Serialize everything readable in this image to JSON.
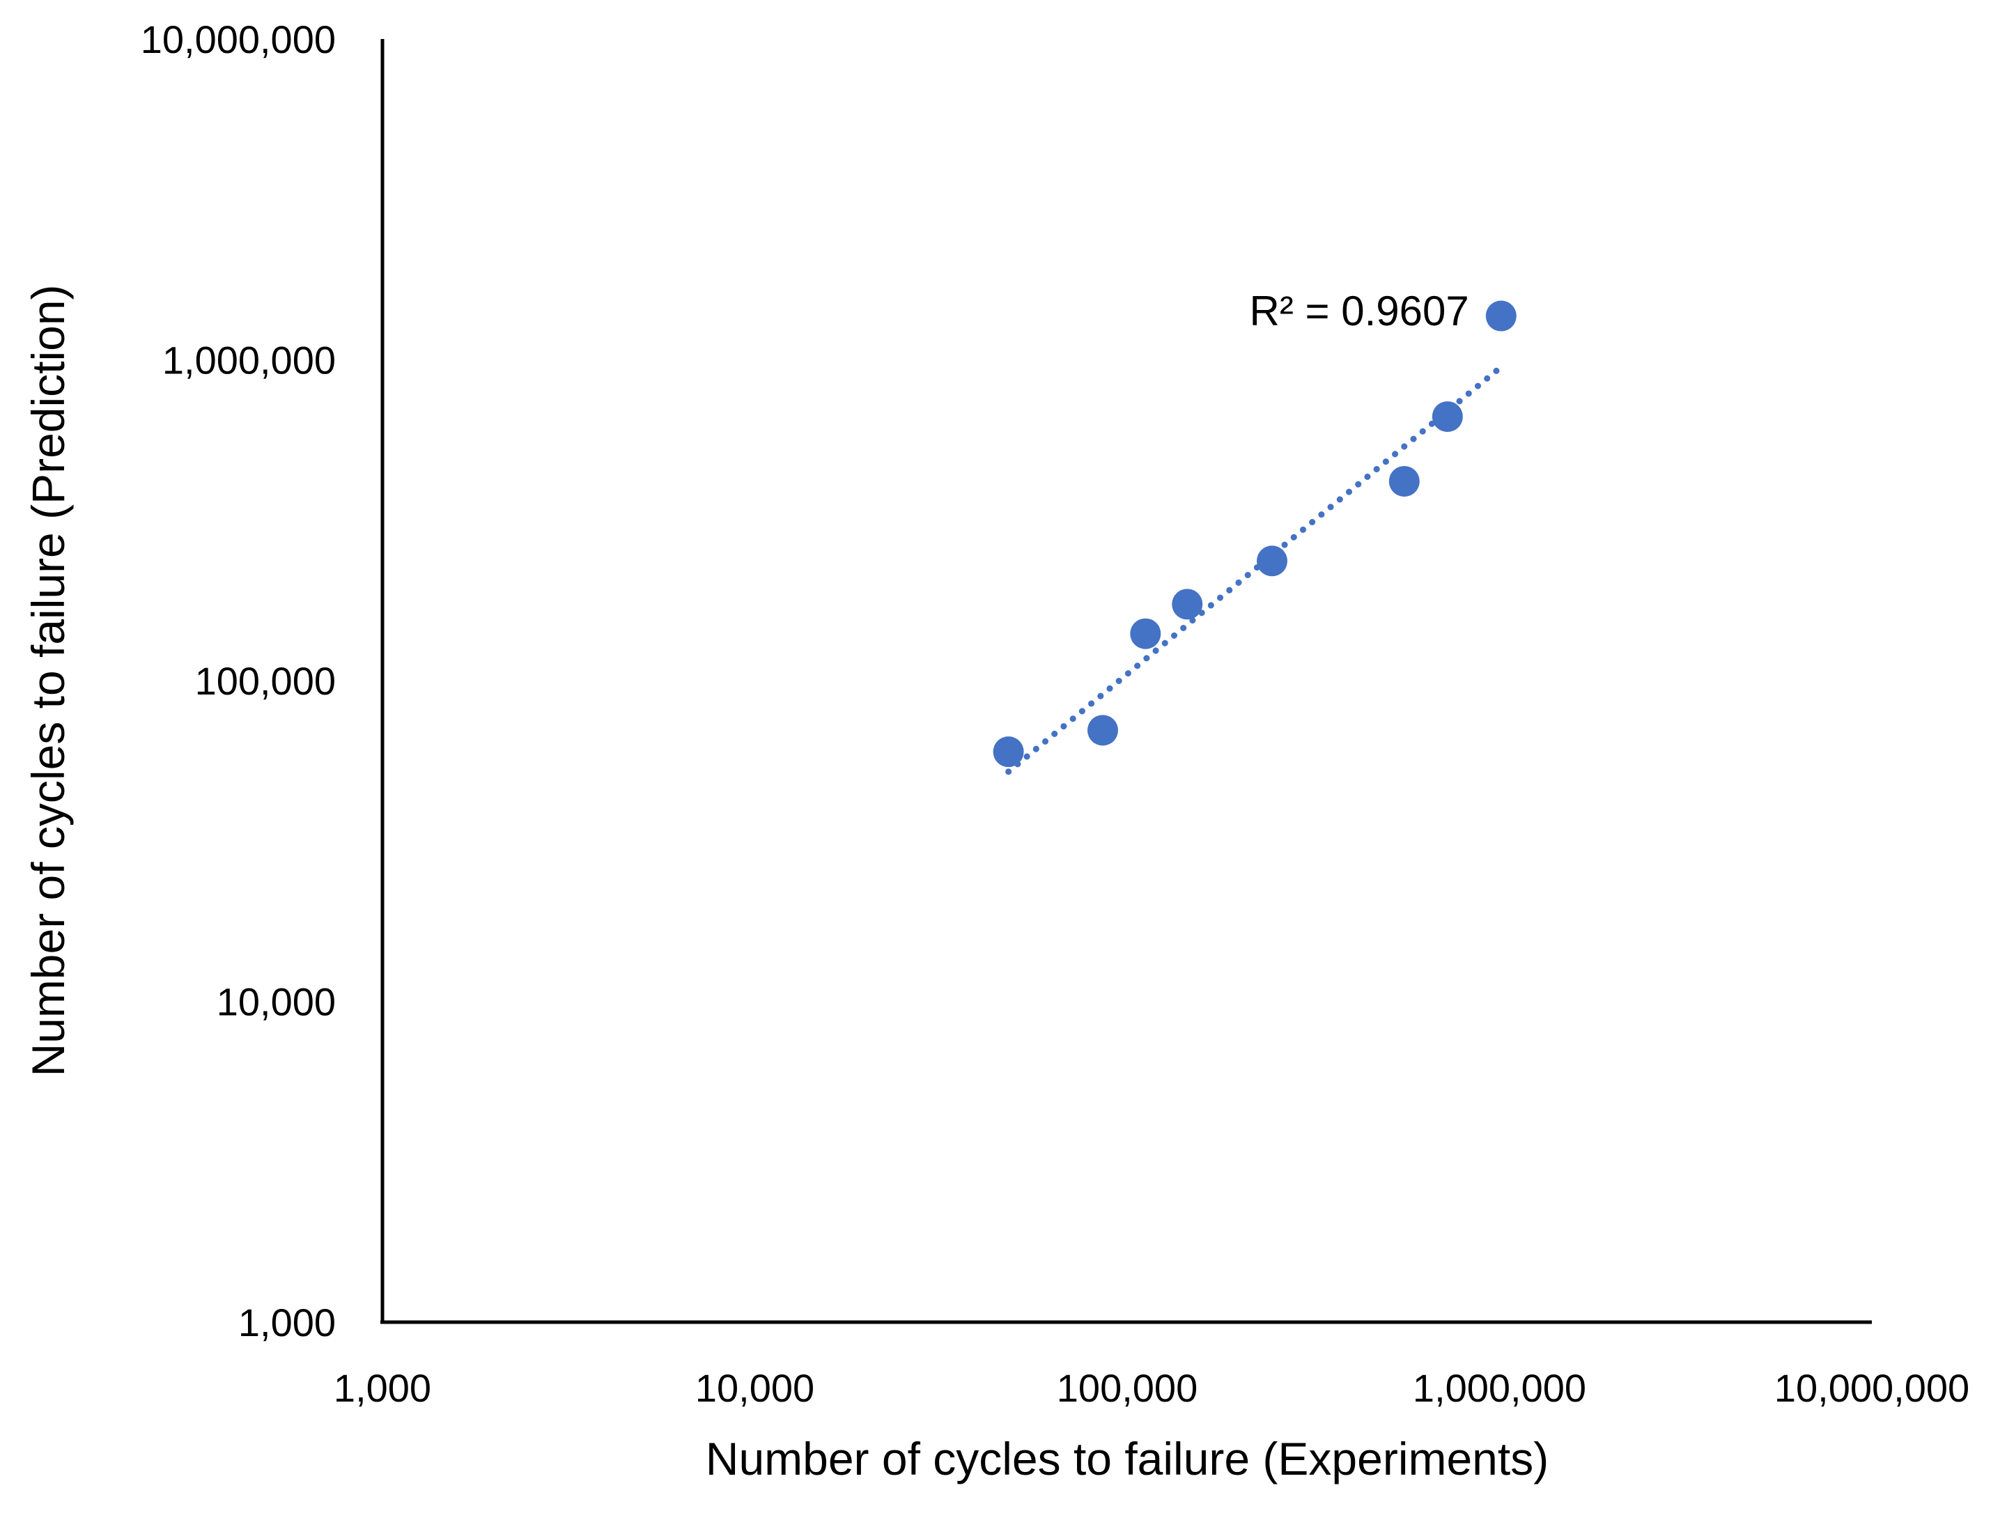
{
  "chart_data": {
    "type": "scatter",
    "title": "",
    "xlabel": "Number of cycles to failure (Experiments)",
    "ylabel": "Number of cycles to failure (Prediction)",
    "x_scale": "log",
    "y_scale": "log",
    "xlim": [
      1000,
      10000000
    ],
    "ylim": [
      1000,
      10000000
    ],
    "x_ticks": [
      {
        "value": 1000,
        "label": "1,000"
      },
      {
        "value": 10000,
        "label": "10,000"
      },
      {
        "value": 100000,
        "label": "100,000"
      },
      {
        "value": 1000000,
        "label": "1,000,000"
      },
      {
        "value": 10000000,
        "label": "10,000,000"
      }
    ],
    "y_ticks": [
      {
        "value": 1000,
        "label": "1,000"
      },
      {
        "value": 10000,
        "label": "10,000"
      },
      {
        "value": 100000,
        "label": "100,000"
      },
      {
        "value": 1000000,
        "label": "1,000,000"
      },
      {
        "value": 10000000,
        "label": "10,000,000"
      }
    ],
    "grid": false,
    "legend": "none",
    "marker_color": "#4472C4",
    "trendline_color": "#4472C4",
    "series": [
      {
        "points": [
          {
            "x": 48000,
            "y": 60000
          },
          {
            "x": 86000,
            "y": 70000
          },
          {
            "x": 112000,
            "y": 140000
          },
          {
            "x": 145000,
            "y": 173000
          },
          {
            "x": 245000,
            "y": 236000
          },
          {
            "x": 555000,
            "y": 418000
          },
          {
            "x": 725000,
            "y": 665000
          },
          {
            "x": 1010000,
            "y": 1370000
          }
        ]
      }
    ],
    "trendline": {
      "type": "power",
      "style": "dotted",
      "x_range": [
        48000,
        1010000
      ],
      "y_range": [
        52000,
        950000
      ]
    },
    "annotations": [
      {
        "text": "R² = 0.9607",
        "x": 420000,
        "y": 1430000
      }
    ]
  }
}
